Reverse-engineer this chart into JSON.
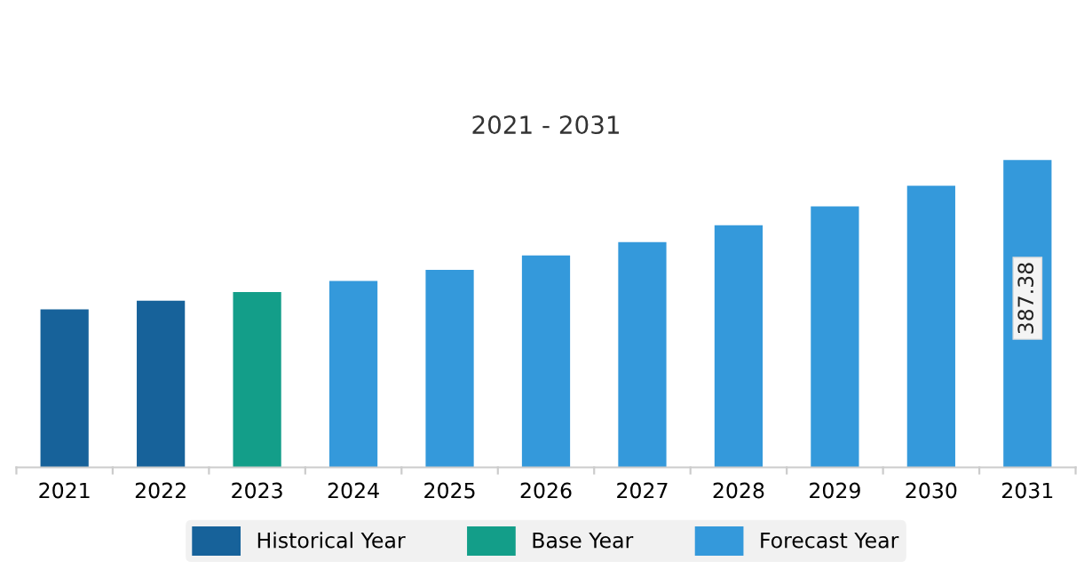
{
  "chart_data": {
    "type": "bar",
    "title": "2021 - 2031",
    "categories": [
      "2021",
      "2022",
      "2023",
      "2024",
      "2025",
      "2026",
      "2027",
      "2028",
      "2029",
      "2030",
      "2031"
    ],
    "series": [
      {
        "name": "Historical Year",
        "color": "#17629a",
        "values": [
          199,
          210,
          null,
          null,
          null,
          null,
          null,
          null,
          null,
          null,
          null
        ]
      },
      {
        "name": "Base Year",
        "color": "#139e89",
        "values": [
          null,
          null,
          221,
          null,
          null,
          null,
          null,
          null,
          null,
          null,
          null
        ]
      },
      {
        "name": "Forecast Year",
        "color": "#3499db",
        "values": [
          null,
          null,
          null,
          235,
          249,
          267,
          284,
          305,
          329,
          355,
          387.38
        ],
        "value_labels": [
          null,
          null,
          null,
          null,
          null,
          null,
          null,
          null,
          null,
          null,
          "387.38"
        ]
      }
    ],
    "legend": "bottom",
    "grid": false
  }
}
